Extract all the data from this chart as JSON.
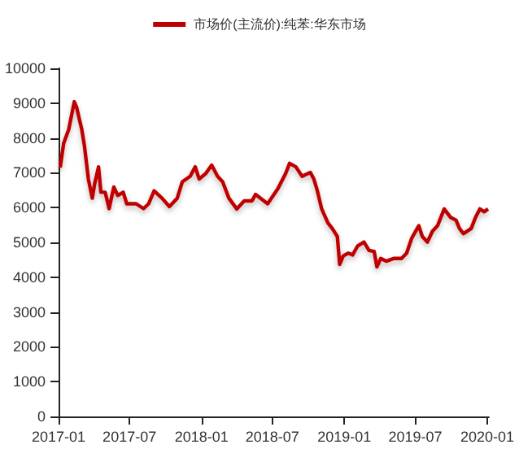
{
  "chart_data": {
    "type": "line",
    "legend": "top",
    "x": [
      "2017-01-05",
      "2017-01-14",
      "2017-01-27",
      "2017-02-10",
      "2017-02-16",
      "2017-03-01",
      "2017-03-08",
      "2017-03-18",
      "2017-03-28",
      "2017-04-03",
      "2017-04-13",
      "2017-04-19",
      "2017-04-30",
      "2017-05-10",
      "2017-05-22",
      "2017-06-01",
      "2017-06-15",
      "2017-06-24",
      "2017-07-18",
      "2017-08-06",
      "2017-08-19",
      "2017-09-02",
      "2017-09-22",
      "2017-10-11",
      "2017-10-31",
      "2017-11-13",
      "2017-12-03",
      "2017-12-16",
      "2017-12-26",
      "2018-01-12",
      "2018-01-27",
      "2018-02-11",
      "2018-02-24",
      "2018-03-12",
      "2018-04-01",
      "2018-04-20",
      "2018-05-10",
      "2018-05-19",
      "2018-06-19",
      "2018-07-15",
      "2018-08-04",
      "2018-08-14",
      "2018-08-30",
      "2018-09-15",
      "2018-10-06",
      "2018-10-15",
      "2018-10-24",
      "2018-11-04",
      "2018-11-20",
      "2018-12-01",
      "2018-12-14",
      "2018-12-20",
      "2018-12-29",
      "2019-01-11",
      "2019-01-22",
      "2019-02-04",
      "2019-02-20",
      "2019-03-05",
      "2019-03-18",
      "2019-03-25",
      "2019-04-04",
      "2019-04-18",
      "2019-05-08",
      "2019-05-27",
      "2019-06-09",
      "2019-06-22",
      "2019-07-10",
      "2019-07-19",
      "2019-08-01",
      "2019-08-14",
      "2019-08-27",
      "2019-09-13",
      "2019-09-29",
      "2019-10-13",
      "2019-10-22",
      "2019-11-01",
      "2019-11-21",
      "2019-12-02",
      "2019-12-13",
      "2019-12-24",
      "2020-01-03"
    ],
    "series": [
      {
        "name": "市场价(主流价):纯苯:华东市场",
        "color": "#c00000",
        "values": [
          7150,
          7850,
          8250,
          9040,
          8880,
          8250,
          7770,
          6820,
          6270,
          6680,
          7170,
          6440,
          6440,
          5970,
          6590,
          6350,
          6440,
          6110,
          6110,
          5970,
          6110,
          6480,
          6270,
          6030,
          6270,
          6740,
          6900,
          7170,
          6820,
          6980,
          7220,
          6900,
          6740,
          6270,
          5960,
          6190,
          6190,
          6380,
          6110,
          6540,
          6980,
          7270,
          7170,
          6900,
          7010,
          6820,
          6480,
          5960,
          5560,
          5400,
          5170,
          4370,
          4610,
          4690,
          4640,
          4900,
          5010,
          4770,
          4740,
          4300,
          4540,
          4460,
          4540,
          4540,
          4690,
          5120,
          5480,
          5170,
          5010,
          5320,
          5480,
          5960,
          5720,
          5640,
          5400,
          5250,
          5400,
          5720,
          5960,
          5880,
          5960
        ]
      }
    ],
    "xlim": [
      "2017-01-01",
      "2020-01-05"
    ],
    "xticks": [
      "2017-01",
      "2017-07",
      "2018-01",
      "2018-07",
      "2019-01",
      "2019-07",
      "2020-01"
    ],
    "ylim": [
      0,
      10000
    ],
    "yticks": [
      0,
      1000,
      2000,
      3000,
      4000,
      5000,
      6000,
      7000,
      8000,
      9000,
      10000
    ],
    "grid": false,
    "marker": "none",
    "line_style": "solid"
  }
}
